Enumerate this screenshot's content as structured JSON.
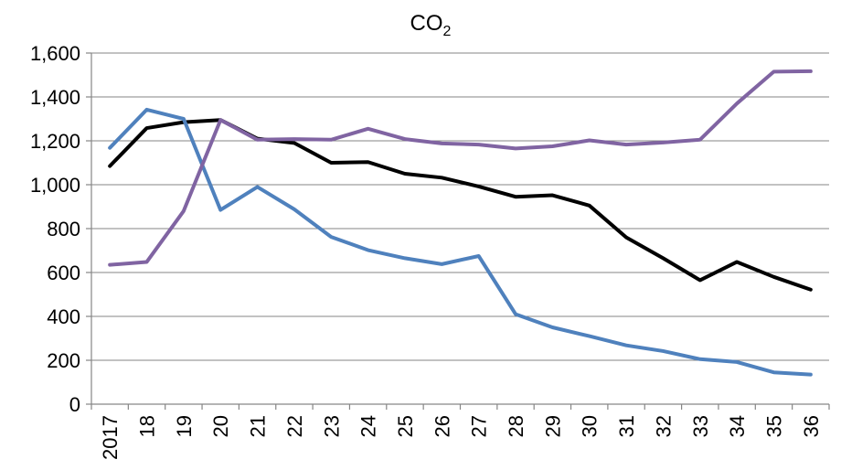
{
  "chart_data": {
    "type": "line",
    "title": "CO",
    "title_subscript": "2",
    "categories": [
      "2017",
      "18",
      "19",
      "20",
      "21",
      "22",
      "23",
      "24",
      "25",
      "26",
      "27",
      "28",
      "29",
      "30",
      "31",
      "32",
      "33",
      "34",
      "35",
      "36"
    ],
    "ylim": [
      0,
      1600
    ],
    "yticks": [
      0,
      200,
      400,
      600,
      800,
      1000,
      1200,
      1400,
      1600
    ],
    "ytick_labels": [
      "0",
      "200",
      "400",
      "600",
      "800",
      "1,000",
      "1,200",
      "1,400",
      "1,600"
    ],
    "grid": true,
    "legend": "none",
    "series": [
      {
        "color": "#000000",
        "values": [
          1085,
          1258,
          1285,
          1295,
          1210,
          1190,
          1100,
          1103,
          1050,
          1032,
          992,
          945,
          952,
          905,
          760,
          665,
          565,
          648,
          580,
          522
        ]
      },
      {
        "color": "#4f81bd",
        "values": [
          1168,
          1342,
          1300,
          885,
          990,
          888,
          762,
          702,
          665,
          638,
          675,
          410,
          350,
          310,
          268,
          242,
          205,
          192,
          145,
          135
        ]
      },
      {
        "color": "#8064a2",
        "values": [
          635,
          648,
          880,
          1295,
          1205,
          1208,
          1205,
          1255,
          1208,
          1188,
          1183,
          1165,
          1175,
          1202,
          1183,
          1192,
          1205,
          1370,
          1515,
          1517
        ]
      }
    ]
  }
}
